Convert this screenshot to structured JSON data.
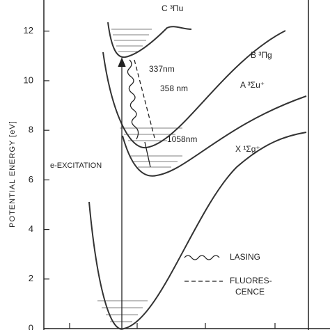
{
  "chart_data": {
    "type": "potential-diagram",
    "ylabel": "POTENTIAL ENERGY [eV]",
    "ylim": [
      0,
      13.2
    ],
    "yticks": [
      0,
      2,
      4,
      6,
      8,
      10,
      12
    ],
    "state_labels": [
      "C ³Πu",
      "B ³Πg",
      "A ³Σu⁺",
      "X ¹Σg⁺"
    ],
    "transition_labels": [
      "337nm",
      "358 nm",
      "1058nm"
    ],
    "excitation_label": "e-EXCITATION",
    "legend": {
      "lasing": "LASING",
      "fluorescence": [
        "FLUORES-",
        "CENCE"
      ]
    }
  }
}
